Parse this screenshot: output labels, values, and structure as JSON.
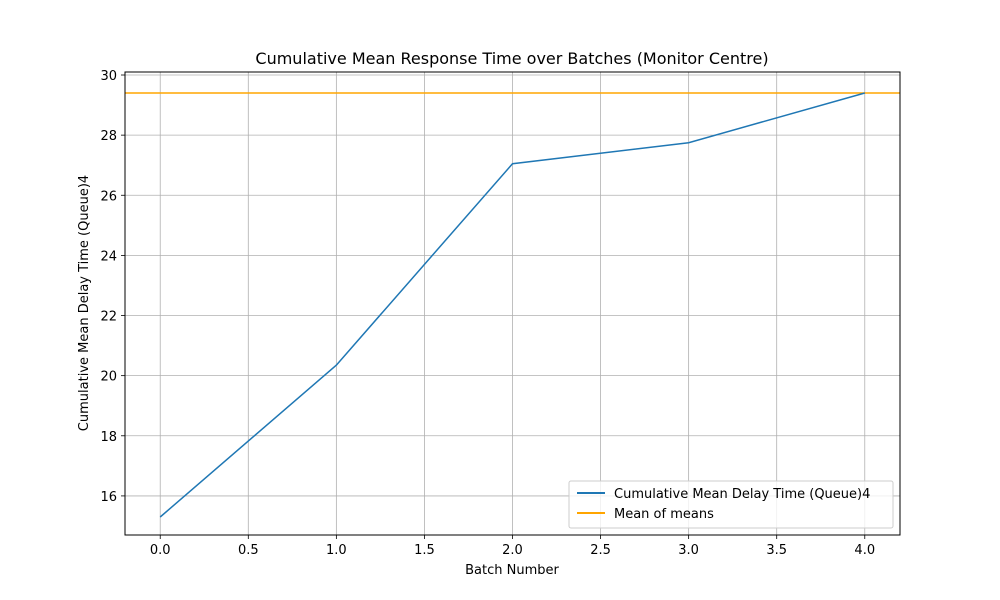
{
  "chart_data": {
    "type": "line",
    "title": "Cumulative Mean Response Time over Batches (Monitor Centre)",
    "xlabel": "Batch Number",
    "ylabel": "Cumulative Mean Delay Time (Queue)4",
    "xlim": [
      -0.2,
      4.2
    ],
    "ylim": [
      14.7,
      30.1
    ],
    "x_ticks": [
      0.0,
      0.5,
      1.0,
      1.5,
      2.0,
      2.5,
      3.0,
      3.5,
      4.0
    ],
    "x_tick_labels": [
      "0.0",
      "0.5",
      "1.0",
      "1.5",
      "2.0",
      "2.5",
      "3.0",
      "3.5",
      "4.0"
    ],
    "y_ticks": [
      16,
      18,
      20,
      22,
      24,
      26,
      28,
      30
    ],
    "y_tick_labels": [
      "16",
      "18",
      "20",
      "22",
      "24",
      "26",
      "28",
      "30"
    ],
    "grid": true,
    "legend_position": "lower-right",
    "series": [
      {
        "name": "Cumulative Mean Delay Time (Queue)4",
        "color": "#1f77b4",
        "x": [
          0,
          1,
          2,
          3,
          4
        ],
        "y": [
          15.3,
          20.35,
          27.05,
          27.75,
          29.4
        ]
      }
    ],
    "hlines": [
      {
        "name": "Mean of means",
        "color": "#ffa500",
        "y": 29.4
      }
    ]
  }
}
